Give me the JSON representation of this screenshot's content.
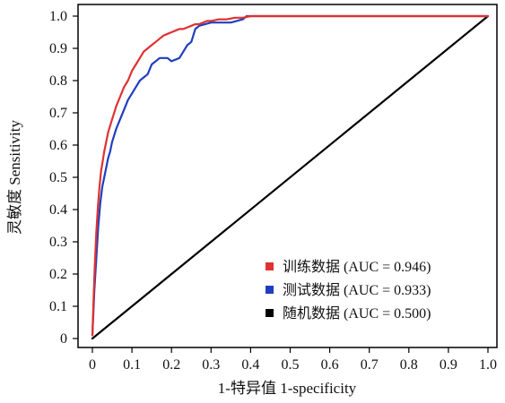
{
  "chart_data": {
    "type": "line",
    "xlabel": "1-特异值 1-specificity",
    "ylabel": "灵敏度 Sensitivity",
    "xlim": [
      0,
      1
    ],
    "ylim": [
      0,
      1
    ],
    "x_ticks": [
      "0",
      "0.1",
      "0.2",
      "0.3",
      "0.4",
      "0.5",
      "0.6",
      "0.7",
      "0.8",
      "0.9",
      "1.0"
    ],
    "y_ticks": [
      "0",
      "0.1",
      "0.2",
      "0.3",
      "0.4",
      "0.5",
      "0.6",
      "0.7",
      "0.8",
      "0.9",
      "1.0"
    ],
    "grid": false,
    "legend_position": "bottom-right",
    "series": [
      {
        "name": "训练数据 (AUC = 0.946)",
        "color": "#e03131",
        "x": [
          0,
          0.003,
          0.006,
          0.01,
          0.014,
          0.018,
          0.022,
          0.026,
          0.03,
          0.035,
          0.04,
          0.045,
          0.05,
          0.055,
          0.06,
          0.07,
          0.08,
          0.09,
          0.1,
          0.11,
          0.12,
          0.13,
          0.14,
          0.15,
          0.16,
          0.17,
          0.18,
          0.19,
          0.2,
          0.21,
          0.22,
          0.23,
          0.24,
          0.25,
          0.26,
          0.27,
          0.28,
          0.29,
          0.3,
          0.32,
          0.34,
          0.36,
          0.38,
          0.4,
          0.5,
          0.6,
          0.7,
          0.8,
          0.9,
          1.0
        ],
        "y": [
          0.01,
          0.12,
          0.22,
          0.33,
          0.41,
          0.47,
          0.52,
          0.55,
          0.58,
          0.61,
          0.64,
          0.66,
          0.68,
          0.7,
          0.72,
          0.75,
          0.78,
          0.8,
          0.83,
          0.85,
          0.87,
          0.89,
          0.9,
          0.91,
          0.92,
          0.93,
          0.94,
          0.945,
          0.95,
          0.955,
          0.96,
          0.96,
          0.965,
          0.97,
          0.975,
          0.975,
          0.98,
          0.985,
          0.985,
          0.99,
          0.99,
          0.995,
          0.995,
          1.0,
          1.0,
          1.0,
          1.0,
          1.0,
          1.0,
          1.0
        ]
      },
      {
        "name": "测试数据 (AUC = 0.933)",
        "color": "#1f3fbf",
        "x": [
          0,
          0.005,
          0.01,
          0.015,
          0.02,
          0.025,
          0.03,
          0.035,
          0.04,
          0.045,
          0.05,
          0.055,
          0.06,
          0.07,
          0.08,
          0.09,
          0.1,
          0.11,
          0.12,
          0.13,
          0.14,
          0.15,
          0.17,
          0.19,
          0.2,
          0.22,
          0.24,
          0.25,
          0.26,
          0.27,
          0.3,
          0.35,
          0.38,
          0.39,
          0.4,
          0.5,
          0.6,
          0.7,
          0.8,
          0.9,
          1.0
        ],
        "y": [
          0.01,
          0.15,
          0.25,
          0.35,
          0.42,
          0.47,
          0.5,
          0.53,
          0.56,
          0.58,
          0.61,
          0.63,
          0.65,
          0.68,
          0.71,
          0.74,
          0.76,
          0.78,
          0.8,
          0.81,
          0.82,
          0.85,
          0.87,
          0.87,
          0.86,
          0.87,
          0.91,
          0.92,
          0.96,
          0.97,
          0.98,
          0.98,
          0.99,
          1.0,
          1.0,
          1.0,
          1.0,
          1.0,
          1.0,
          1.0,
          1.0
        ]
      },
      {
        "name": "随机数据 (AUC = 0.500)",
        "color": "#000000",
        "x": [
          0,
          1
        ],
        "y": [
          0,
          1
        ]
      }
    ]
  }
}
